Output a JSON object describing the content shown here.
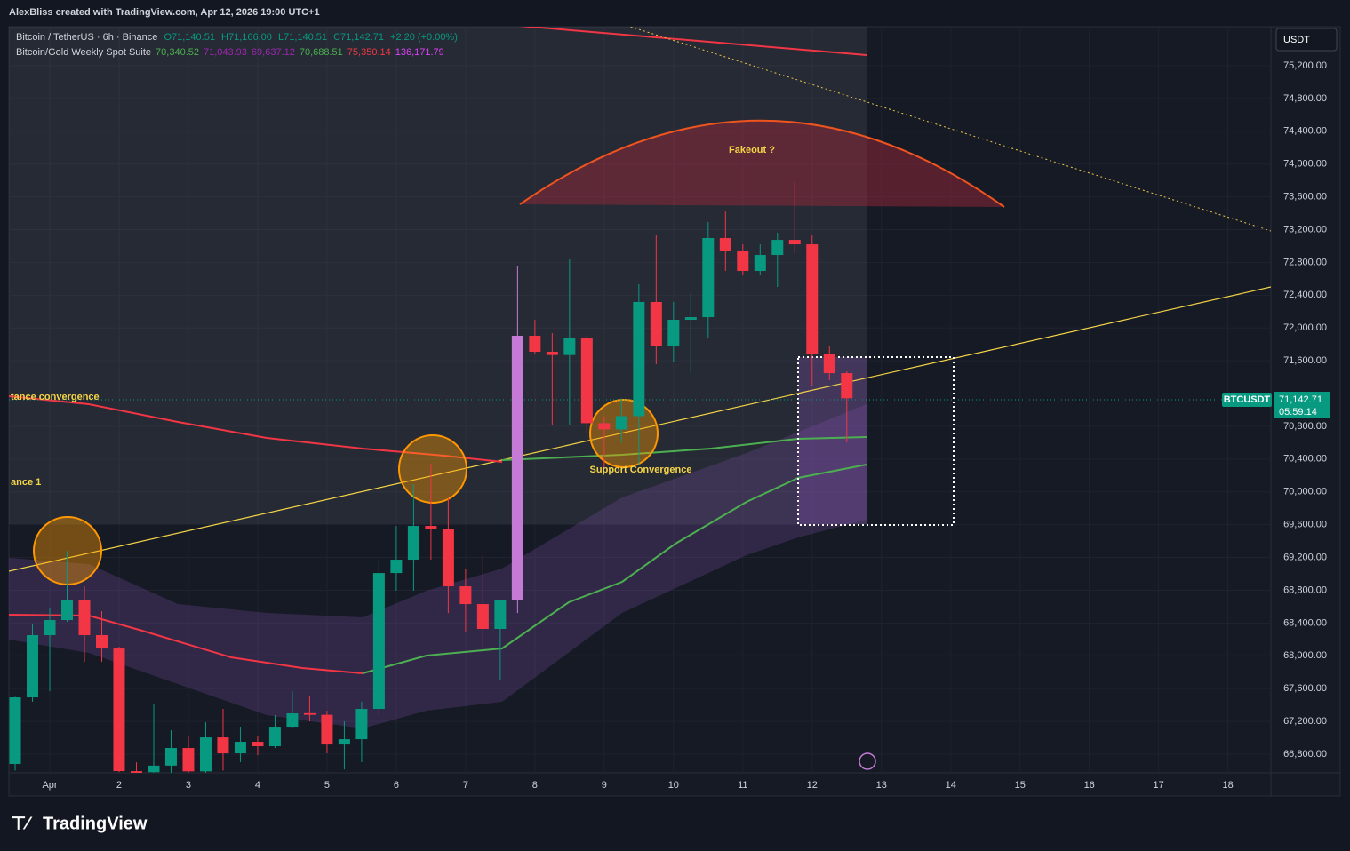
{
  "header": "AlexBliss created with TradingView.com, Apr 12, 2026 19:00 UTC+1",
  "legend": {
    "symbol": "Bitcoin / TetherUS · 6h · Binance",
    "open": "O71,140.51",
    "high": "H71,166.00",
    "low": "L71,140.51",
    "close": "C71,142.71",
    "change": "+2.20 (+0.00%)",
    "indicator": "Bitcoin/Gold Weekly Spot Suite",
    "indicator_values": [
      "70,340.52",
      "71,043.93",
      "69,637.12",
      "70,688.51",
      "75,350.14",
      "136,171.79"
    ],
    "indicator_colors": [
      "#4caf50",
      "#9c27b0",
      "#9c27b0",
      "#4caf50",
      "#f23645",
      "#e040fb"
    ]
  },
  "currency": "USDT",
  "price_tag": {
    "symbol": "BTCUSDT",
    "price": "71,142.71",
    "countdown": "05:59:14"
  },
  "annotations": [
    "Fakeout ?",
    "Support Convergence",
    "tance convergence",
    "ance 1"
  ],
  "footer": "TradingView",
  "chart_data": {
    "type": "candlestick",
    "up_color": "#089981",
    "down_color": "#f23645",
    "highlight": {
      "index": 29,
      "color": "#c57bd6"
    },
    "x": [
      0.5,
      0.75,
      1,
      1.25,
      1.5,
      1.75,
      2,
      2.25,
      2.5,
      2.75,
      3,
      3.25,
      3.5,
      3.75,
      4,
      4.25,
      4.5,
      4.75,
      5,
      5.25,
      5.5,
      5.75,
      6,
      6.25,
      6.5,
      6.75,
      7,
      7.25,
      7.5,
      7.75,
      8,
      8.25,
      8.5,
      8.75,
      9,
      9.25,
      9.5,
      9.75,
      10,
      10.25,
      10.5,
      10.75,
      11,
      11.25,
      11.5,
      11.75,
      12,
      12.25,
      12.5
    ],
    "open": [
      66680,
      67493,
      68252,
      68436,
      68685,
      68252,
      68089,
      66593,
      66580,
      66660,
      66875,
      66590,
      67005,
      66810,
      66951,
      66897,
      67135,
      67300,
      67280,
      66918,
      66983,
      67352,
      69010,
      69173,
      69585,
      69552,
      68848,
      68631,
      68328,
      68685,
      71905,
      71710,
      71670,
      71883,
      70838,
      70762,
      70924,
      72317,
      71775,
      72100,
      72132,
      73097,
      72945,
      72696,
      72891,
      73075,
      73021,
      71688,
      71449
    ],
    "high": [
      67500,
      68382,
      68577,
      69280,
      68848,
      68544,
      68111,
      66700,
      67406,
      67092,
      67027,
      67190,
      67352,
      67135,
      67027,
      67276,
      67568,
      67514,
      67330,
      67200,
      67440,
      69173,
      69585,
      70094,
      70344,
      69932,
      69065,
      69227,
      68685,
      72750,
      72100,
      71937,
      72837,
      71905,
      70924,
      71141,
      72533,
      73130,
      72317,
      72425,
      73292,
      73422,
      73021,
      73021,
      73162,
      73780,
      73130,
      71775,
      71471
    ],
    "low": [
      66600,
      67440,
      67568,
      68414,
      67926,
      67926,
      66580,
      66300,
      66500,
      66500,
      66500,
      66500,
      66600,
      66702,
      66788,
      66875,
      67113,
      67200,
      66810,
      66614,
      66702,
      67276,
      68794,
      68794,
      69173,
      68522,
      68284,
      68089,
      67710,
      68522,
      71688,
      70816,
      70816,
      70707,
      70274,
      70599,
      70328,
      71558,
      71580,
      71449,
      71883,
      72696,
      72642,
      72642,
      72501,
      72913,
      71287,
      71363,
      70604
    ],
    "close": [
      67493,
      68252,
      68436,
      68685,
      68252,
      68089,
      66593,
      66400,
      66660,
      66875,
      66590,
      67005,
      66810,
      66951,
      66897,
      67135,
      67298,
      67280,
      66918,
      66983,
      67352,
      69010,
      69173,
      69585,
      69552,
      68848,
      68631,
      68328,
      68685,
      71905,
      71710,
      71670,
      71883,
      70838,
      70762,
      70924,
      72317,
      71775,
      72100,
      72132,
      73097,
      72945,
      72696,
      72891,
      73075,
      73021,
      71688,
      71449,
      71142.71
    ],
    "xlim": [
      0.41,
      18.62
    ],
    "xticks": [
      {
        "value": 1,
        "label": "Apr"
      },
      2,
      3,
      4,
      5,
      6,
      7,
      8,
      9,
      10,
      11,
      12,
      13,
      14,
      15,
      16,
      17,
      18
    ],
    "ylim": [
      66572,
      75677
    ],
    "yticks": [
      {
        "value": 66800,
        "label": "66,800.00"
      },
      {
        "value": 67200,
        "label": "67,200.00"
      },
      {
        "value": 67600,
        "label": "67,600.00"
      },
      {
        "value": 68000,
        "label": "68,000.00"
      },
      {
        "value": 68400,
        "label": "68,400.00"
      },
      {
        "value": 68800,
        "label": "68,800.00"
      },
      {
        "value": 69200,
        "label": "69,200.00"
      },
      {
        "value": 69600,
        "label": "69,600.00"
      },
      {
        "value": 70000,
        "label": "70,000.00"
      },
      {
        "value": 70400,
        "label": "70,400.00"
      },
      {
        "value": 70800,
        "label": "70,800.00"
      },
      {
        "value": 71600,
        "label": "71,600.00"
      },
      {
        "value": 72000,
        "label": "72,000.00"
      },
      {
        "value": 72400,
        "label": "72,400.00"
      },
      {
        "value": 72800,
        "label": "72,800.00"
      },
      {
        "value": 73200,
        "label": "73,200.00"
      },
      {
        "value": 73600,
        "label": "73,600.00"
      },
      {
        "value": 74000,
        "label": "74,000.00"
      },
      {
        "value": 74400,
        "label": "74,400.00"
      },
      {
        "value": 74800,
        "label": "74,800.00"
      },
      {
        "value": 75200,
        "label": "75,200.00"
      }
    ],
    "grid": true
  }
}
